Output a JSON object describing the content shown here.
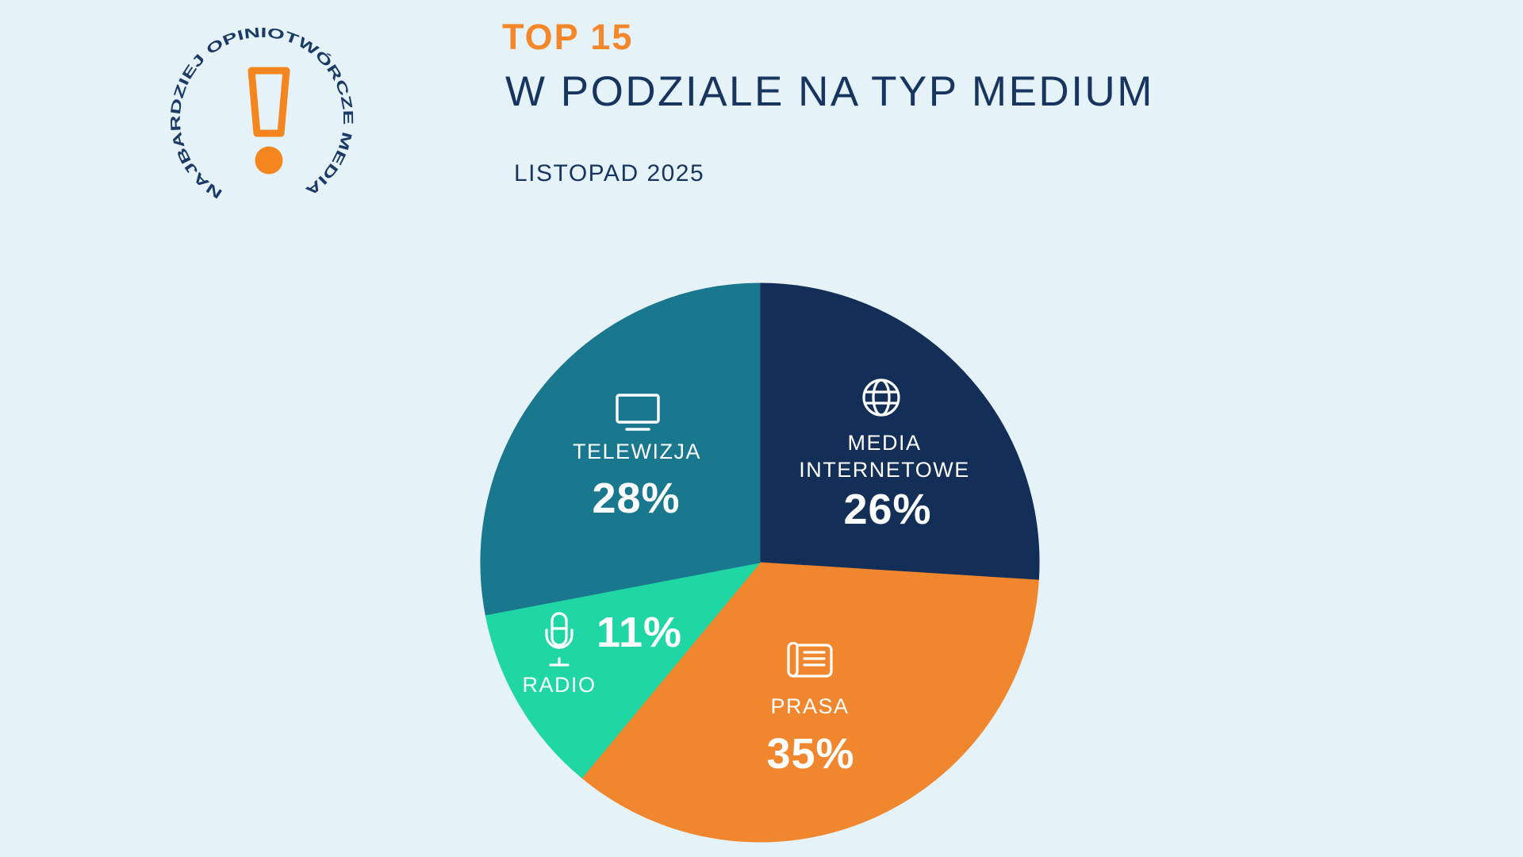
{
  "page": {
    "background_color": "#E5F3F8"
  },
  "logo": {
    "ring_text": "NAJBARDZIEJ OPINIOTWÓRCZE MEDIA",
    "ring_text_color": "#1B3A66",
    "mark": "exclamation-mark",
    "mark_color": "#F5861F"
  },
  "header": {
    "eyebrow": "TOP 15",
    "eyebrow_color": "#F5872B",
    "title": "W PODZIALE NA TYP MEDIUM",
    "title_color": "#17355E",
    "subtitle": "LISTOPAD 2025",
    "subtitle_color": "#17355E"
  },
  "chart_data": {
    "type": "pie",
    "title": "TOP 15 w podziale na typ medium",
    "subtitle": "Listopad 2025",
    "unit": "%",
    "start_angle_deg": 0,
    "direction": "clockwise",
    "legend_position": "labels-inside-slices",
    "label_text_color": "#FFFFFF",
    "slices": [
      {
        "label": "MEDIA INTERNETOWE",
        "value": 26,
        "percent_label": "26%",
        "color": "#132F58",
        "icon": "globe-icon"
      },
      {
        "label": "PRASA",
        "value": 35,
        "percent_label": "35%",
        "color": "#F0862E",
        "icon": "newspaper-icon"
      },
      {
        "label": "RADIO",
        "value": 11,
        "percent_label": "11%",
        "color": "#1FD6A4",
        "icon": "microphone-icon"
      },
      {
        "label": "TELEWIZJA",
        "value": 28,
        "percent_label": "28%",
        "color": "#1A788E",
        "icon": "tv-icon"
      }
    ]
  }
}
